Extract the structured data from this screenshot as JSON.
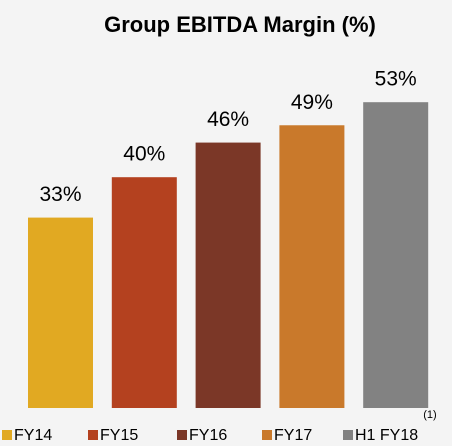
{
  "chart_data": {
    "type": "bar",
    "title": "Group EBITDA Margin (%)",
    "categories": [
      "FY14",
      "FY15",
      "FY16",
      "FY17",
      "H1 FY18"
    ],
    "values": [
      33,
      40,
      46,
      49,
      53
    ],
    "value_labels": [
      "33%",
      "40%",
      "46%",
      "49%",
      "53%"
    ],
    "colors": [
      "#e1a922",
      "#b4411f",
      "#7b3727",
      "#c9792b",
      "#828282"
    ],
    "annotation": "(1)"
  }
}
